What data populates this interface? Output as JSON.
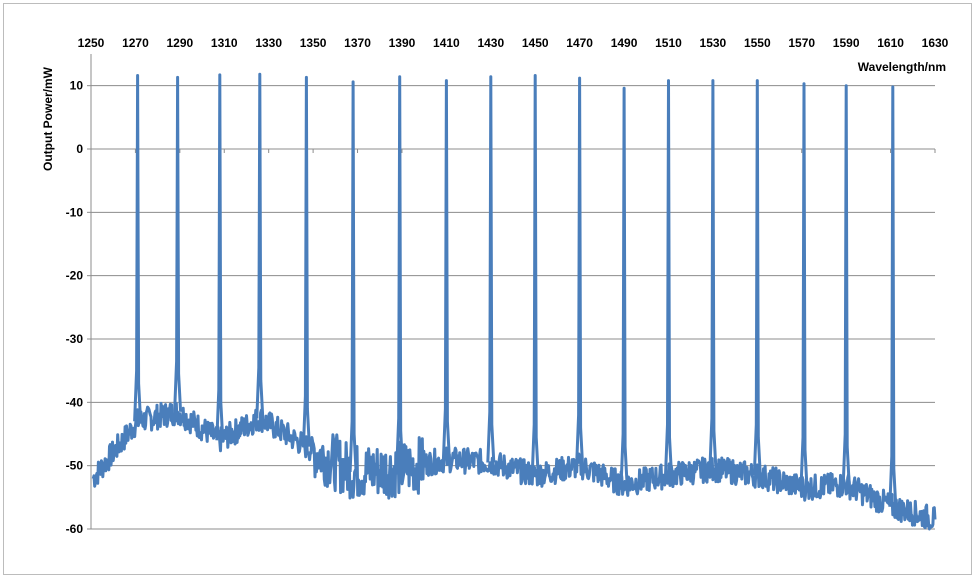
{
  "chart_data": {
    "type": "line",
    "title": "",
    "xlabel": "Wavelength/nm",
    "ylabel": "Output Power/mW",
    "xlim": [
      1250,
      1630
    ],
    "ylim": [
      -60,
      15
    ],
    "x_axis_position": "top",
    "x_ticks": [
      "1250",
      "1270",
      "1290",
      "1310",
      "1330",
      "1350",
      "1370",
      "1390",
      "1410",
      "1430",
      "1450",
      "1470",
      "1490",
      "1510",
      "1530",
      "1550",
      "1570",
      "1590",
      "1610",
      "1630"
    ],
    "y_ticks": [
      "10",
      "0",
      "-10",
      "-20",
      "-30",
      "-40",
      "-50",
      "-60"
    ],
    "grid": "horizontal",
    "line_color": "#4a7ebb",
    "series": [
      {
        "peaks": [
          {
            "x": 1271,
            "y": 11.6
          },
          {
            "x": 1289,
            "y": 11.3
          },
          {
            "x": 1308,
            "y": 11.7
          },
          {
            "x": 1326,
            "y": 11.8
          },
          {
            "x": 1347,
            "y": 11.3
          },
          {
            "x": 1368,
            "y": 10.6
          },
          {
            "x": 1389,
            "y": 11.4
          },
          {
            "x": 1410,
            "y": 10.8
          },
          {
            "x": 1430,
            "y": 11.4
          },
          {
            "x": 1450,
            "y": 11.6
          },
          {
            "x": 1470,
            "y": 11.2
          },
          {
            "x": 1490,
            "y": 9.6
          },
          {
            "x": 1510,
            "y": 10.8
          },
          {
            "x": 1530,
            "y": 10.8
          },
          {
            "x": 1550,
            "y": 10.8
          },
          {
            "x": 1571,
            "y": 10.3
          },
          {
            "x": 1590,
            "y": 10.0
          },
          {
            "x": 1611,
            "y": 9.8
          }
        ],
        "floor": [
          {
            "x": 1251,
            "y": -52.0
          },
          {
            "x": 1271,
            "y": -43.0
          },
          {
            "x": 1289,
            "y": -41.5
          },
          {
            "x": 1308,
            "y": -46.0
          },
          {
            "x": 1326,
            "y": -42.5
          },
          {
            "x": 1347,
            "y": -47.0
          },
          {
            "x": 1368,
            "y": -51.0
          },
          {
            "x": 1389,
            "y": -50.5
          },
          {
            "x": 1410,
            "y": -49.0
          },
          {
            "x": 1430,
            "y": -49.5
          },
          {
            "x": 1450,
            "y": -51.5
          },
          {
            "x": 1470,
            "y": -50.0
          },
          {
            "x": 1490,
            "y": -53.0
          },
          {
            "x": 1510,
            "y": -51.5
          },
          {
            "x": 1530,
            "y": -50.5
          },
          {
            "x": 1550,
            "y": -51.5
          },
          {
            "x": 1571,
            "y": -53.5
          },
          {
            "x": 1590,
            "y": -53.0
          },
          {
            "x": 1611,
            "y": -56.5
          },
          {
            "x": 1630,
            "y": -58.5
          }
        ]
      }
    ]
  }
}
